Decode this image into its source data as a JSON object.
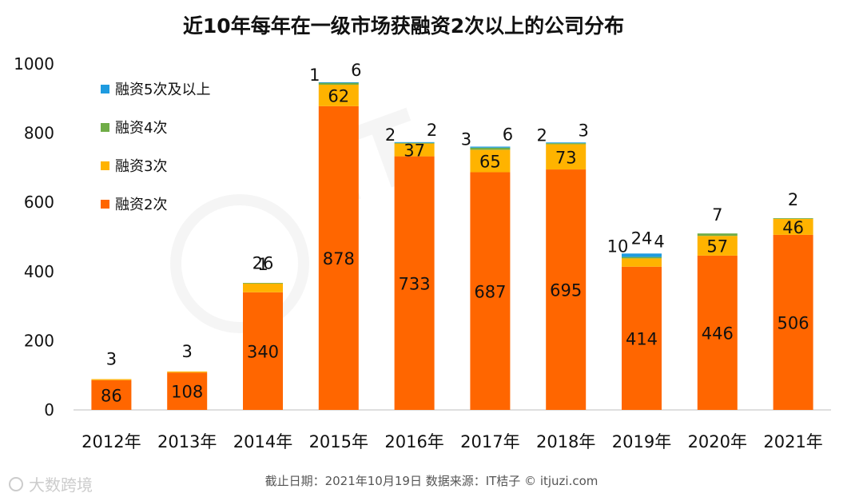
{
  "chart_data": {
    "type": "bar",
    "stacked": true,
    "title": "近10年每年在一级市场获融资2次以上的公司分布",
    "categories": [
      "2012年",
      "2013年",
      "2014年",
      "2015年",
      "2016年",
      "2017年",
      "2018年",
      "2019年",
      "2020年",
      "2021年"
    ],
    "ylim": [
      0,
      1000
    ],
    "yticks": [
      0,
      200,
      400,
      600,
      800,
      1000
    ],
    "legend_position": "top-left",
    "series": [
      {
        "name": "融资2次",
        "color": "#FF6600",
        "values": [
          86,
          108,
          340,
          878,
          733,
          687,
          695,
          414,
          446,
          506
        ]
      },
      {
        "name": "融资3次",
        "color": "#FFB300",
        "values": [
          3,
          3,
          26,
          62,
          37,
          65,
          73,
          24,
          57,
          46
        ]
      },
      {
        "name": "融资4次",
        "color": "#70AD47",
        "values": [
          0,
          0,
          1,
          6,
          2,
          6,
          3,
          4,
          7,
          2
        ]
      },
      {
        "name": "融资5次及以上",
        "color": "#1E9BE0",
        "values": [
          0,
          0,
          0,
          1,
          2,
          3,
          2,
          10,
          0,
          0
        ]
      }
    ]
  },
  "footer": {
    "source": "截止日期：2021年10月19日    数据来源：IT桔子 © itjuzi.com",
    "watermark": "大数跨境"
  }
}
